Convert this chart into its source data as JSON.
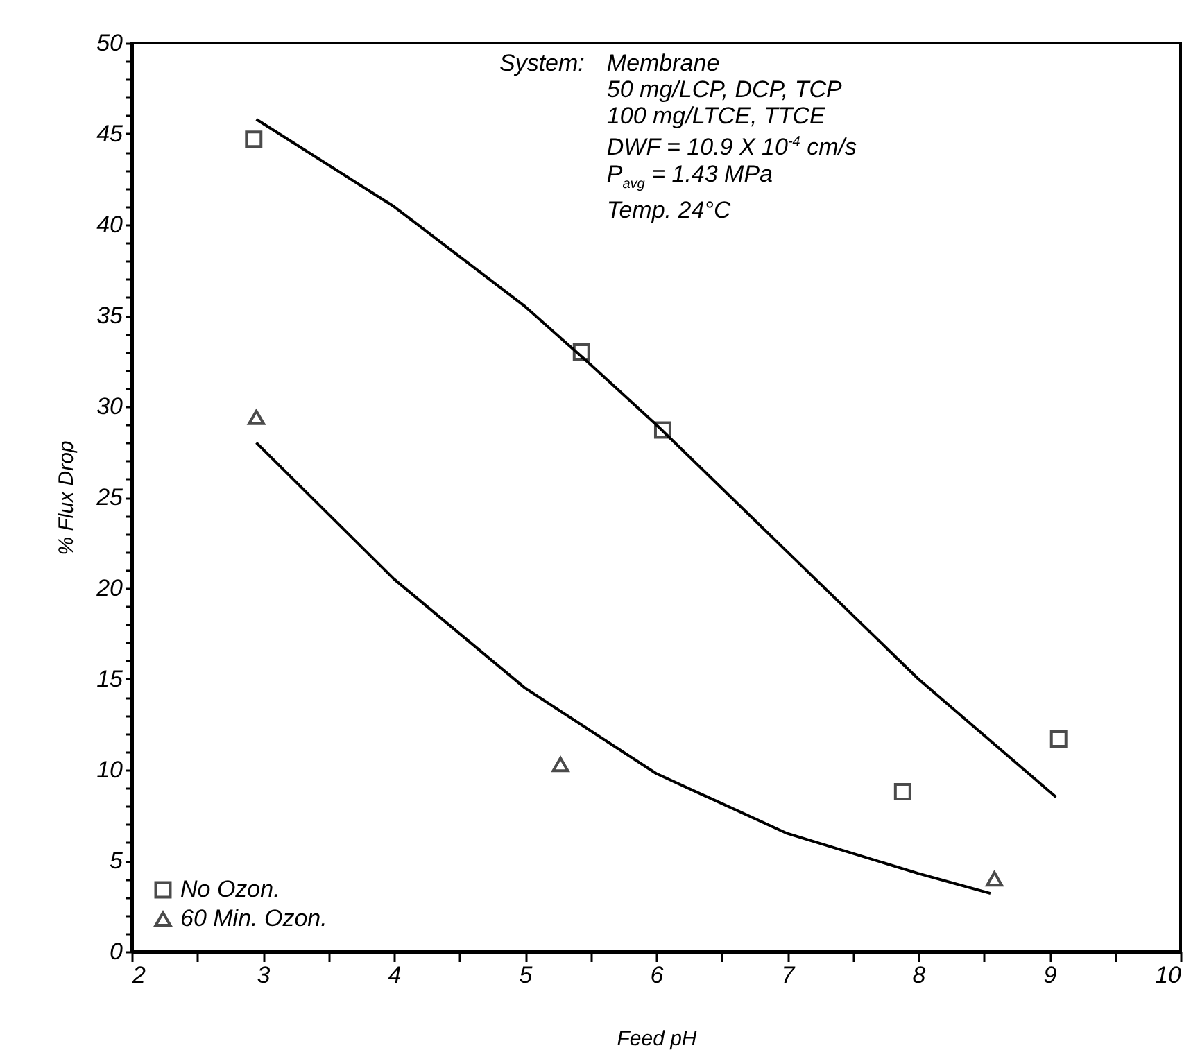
{
  "chart_data": {
    "type": "scatter",
    "xlabel": "Feed pH",
    "ylabel": "% Flux Drop",
    "xlim": [
      2,
      10
    ],
    "ylim": [
      0,
      50
    ],
    "xticks": [
      2,
      {
        "value": 2.5,
        "label": null
      },
      3,
      {
        "value": 3.5,
        "label": null
      },
      4,
      {
        "value": 4.5,
        "label": null
      },
      5,
      {
        "value": 5.5,
        "label": null
      },
      6,
      {
        "value": 6.5,
        "label": null
      },
      7,
      {
        "value": 7.5,
        "label": null
      },
      8,
      {
        "value": 8.5,
        "label": null
      },
      9,
      {
        "value": 9.5,
        "label": null
      },
      10
    ],
    "yticks": [
      0,
      {
        "value": 1,
        "label": null
      },
      {
        "value": 2,
        "label": null
      },
      {
        "value": 3,
        "label": null
      },
      {
        "value": 4,
        "label": null
      },
      5,
      {
        "value": 6,
        "label": null
      },
      {
        "value": 7,
        "label": null
      },
      {
        "value": 8,
        "label": null
      },
      {
        "value": 9,
        "label": null
      },
      10,
      {
        "value": 11,
        "label": null
      },
      {
        "value": 12,
        "label": null
      },
      {
        "value": 13,
        "label": null
      },
      {
        "value": 14,
        "label": null
      },
      15,
      {
        "value": 16,
        "label": null
      },
      {
        "value": 17,
        "label": null
      },
      {
        "value": 18,
        "label": null
      },
      {
        "value": 19,
        "label": null
      },
      20,
      {
        "value": 21,
        "label": null
      },
      {
        "value": 22,
        "label": null
      },
      {
        "value": 23,
        "label": null
      },
      {
        "value": 24,
        "label": null
      },
      25,
      {
        "value": 26,
        "label": null
      },
      {
        "value": 27,
        "label": null
      },
      {
        "value": 28,
        "label": null
      },
      {
        "value": 29,
        "label": null
      },
      30,
      {
        "value": 31,
        "label": null
      },
      {
        "value": 32,
        "label": null
      },
      {
        "value": 33,
        "label": null
      },
      {
        "value": 34,
        "label": null
      },
      35,
      {
        "value": 36,
        "label": null
      },
      {
        "value": 37,
        "label": null
      },
      {
        "value": 38,
        "label": null
      },
      {
        "value": 39,
        "label": null
      },
      40,
      {
        "value": 41,
        "label": null
      },
      {
        "value": 42,
        "label": null
      },
      {
        "value": 43,
        "label": null
      },
      {
        "value": 44,
        "label": null
      },
      45,
      {
        "value": 46,
        "label": null
      },
      {
        "value": 47,
        "label": null
      },
      {
        "value": 48,
        "label": null
      },
      {
        "value": 49,
        "label": null
      },
      50
    ],
    "legend": "bottom left",
    "grid": false,
    "annotations": [
      "System:",
      "Membrane",
      "50 mg/LCP, DCP, TCP",
      "100 mg/LTCE, TTCE",
      "DWF = 10.9 X 10$^{-4}$ cm/s",
      "P$_{avg}$ = 1.43 MPa",
      "Temp.  24°C"
    ],
    "series": [
      {
        "name": "No Ozon.",
        "type": "scatter",
        "marker": "square",
        "color": "#000000",
        "x": [
          2.93,
          5.43,
          6.05,
          7.88,
          9.07
        ],
        "values": [
          44.7,
          33.0,
          28.7,
          8.8,
          11.7
        ]
      },
      {
        "name": "60 Min. Ozon.",
        "type": "scatter",
        "marker": "triangle",
        "color": "#000000",
        "x": [
          2.95,
          5.27,
          8.58
        ],
        "values": [
          29.4,
          10.3,
          4.0
        ]
      },
      {
        "type": "line",
        "color": "#000000",
        "x": [
          2.95,
          4,
          5,
          5.5,
          6,
          7,
          8,
          9.05
        ],
        "values": [
          45.8,
          41,
          35.5,
          32.3,
          29,
          22,
          15,
          8.5
        ]
      },
      {
        "type": "line",
        "color": "#000000",
        "x": [
          2.95,
          4,
          5,
          6,
          7,
          8,
          8.55
        ],
        "values": [
          28,
          20.5,
          14.5,
          9.8,
          6.5,
          4.3,
          3.2
        ]
      }
    ]
  }
}
